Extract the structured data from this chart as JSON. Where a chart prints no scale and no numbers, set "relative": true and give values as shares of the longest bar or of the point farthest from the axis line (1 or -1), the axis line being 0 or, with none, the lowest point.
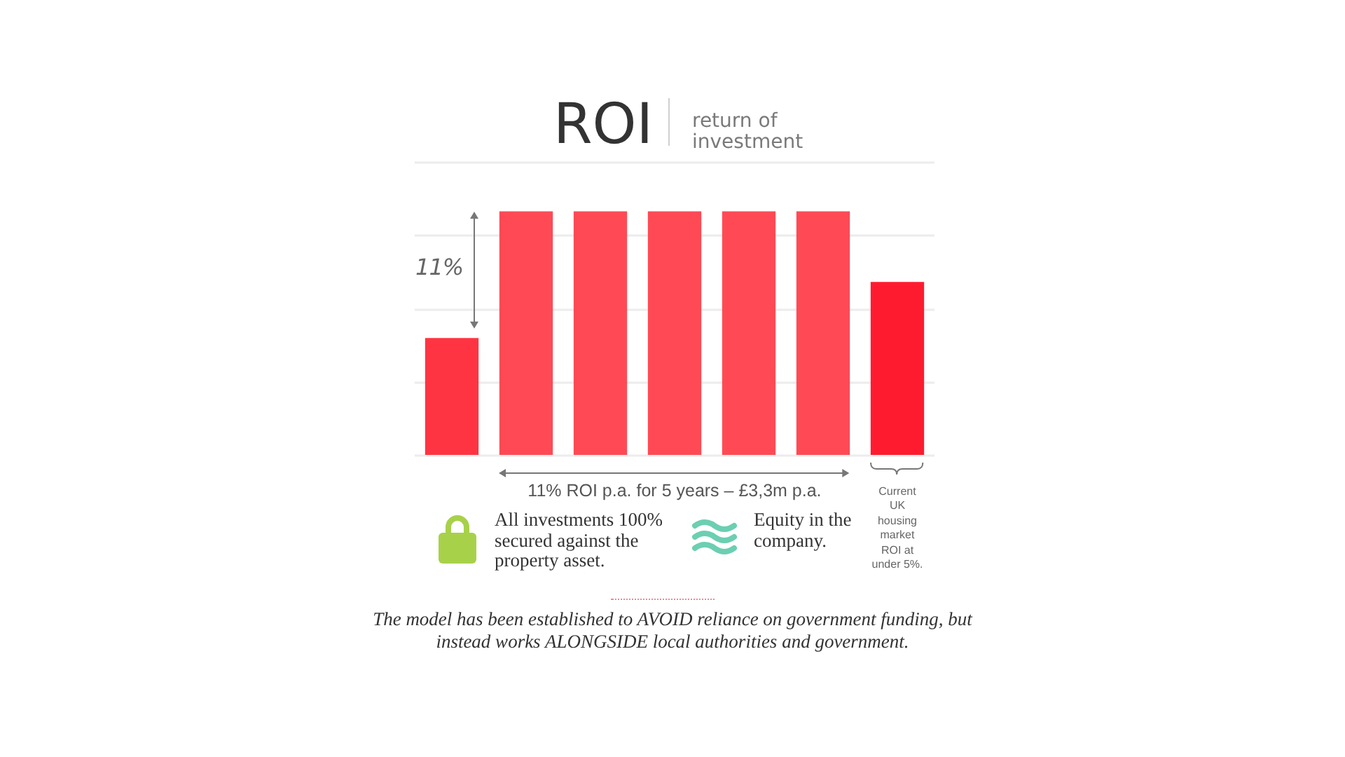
{
  "chart_data": {
    "type": "bar",
    "title": "ROI",
    "subtitle": "return of investment",
    "categories": [
      null,
      null,
      null,
      null,
      null,
      null,
      null
    ],
    "values": [
      0.48,
      1,
      1,
      1,
      1,
      1,
      0.71
    ],
    "colors": [
      "#ff3442",
      "#ff4a55",
      "#ff4a55",
      "#ff4a55",
      "#ff4a55",
      "#ff4a55",
      "#ff1b2f"
    ],
    "relative": true,
    "grid": "y",
    "annotations": [
      "11%",
      "11% ROI p.a. for 5 years – £3,3m p.a.",
      "Current UK housing market ROI at under 5%.",
      "All investments 100% secured against the property asset.",
      "Equity in the company.",
      "The model has been established to AVOID reliance on government funding, but instead works ALONGSIDE local authorities and government."
    ]
  }
}
